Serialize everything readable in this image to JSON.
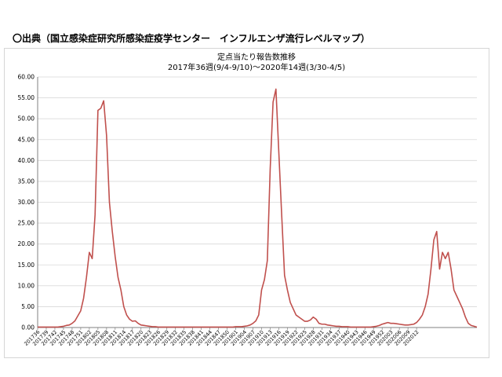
{
  "header": {
    "source_text": "〇出典（国立感染症研究所感染症疫学センター　インフルエンザ流行レベルマップ）"
  },
  "chart_data": {
    "type": "line",
    "title": "定点当たり報告数推移",
    "subtitle": "2017年36週(9/4-9/10)〜2020年14週(3/30-4/5)",
    "xlabel": "",
    "ylabel": "",
    "ylim": [
      0,
      60
    ],
    "yticks": [
      "0.00",
      "5.00",
      "10.00",
      "15.00",
      "20.00",
      "25.00",
      "30.00",
      "35.00",
      "40.00",
      "45.00",
      "50.00",
      "55.00",
      "60.00"
    ],
    "grid": true,
    "legend": "none",
    "line_color": "#c0504d",
    "x_tick_labels": [
      "201736",
      "201739",
      "201742",
      "201745",
      "201748",
      "201751",
      "201802",
      "201805",
      "201808",
      "201811",
      "201814",
      "201817",
      "201820",
      "201823",
      "201826",
      "201829",
      "201832",
      "201835",
      "201838",
      "201841",
      "201844",
      "201847",
      "201850",
      "201901",
      "201904",
      "201907",
      "201910",
      "201913",
      "201916",
      "201919",
      "201922",
      "201925",
      "201928",
      "201931",
      "201934",
      "201937",
      "201940",
      "201943",
      "201946",
      "201949",
      "201952",
      "202003",
      "202006",
      "202009",
      "202012"
    ],
    "series": [
      {
        "values": [
          0.1,
          0.1,
          0.1,
          0.1,
          0.1,
          0.1,
          0.1,
          0.1,
          0.2,
          0.3,
          0.5,
          0.6,
          1.0,
          1.6,
          2.8,
          4.0,
          7.0,
          12.0,
          18.0,
          16.5,
          27.0,
          52.0,
          52.5,
          54.3,
          46.0,
          30.0,
          23.0,
          17.0,
          12.0,
          9.0,
          5.0,
          3.0,
          2.0,
          1.5,
          1.6,
          1.0,
          0.6,
          0.5,
          0.4,
          0.3,
          0.2,
          0.2,
          0.1,
          0.1,
          0.1,
          0.1,
          0.1,
          0.1,
          0.1,
          0.1,
          0.1,
          0.1,
          0.1,
          0.1,
          0.1,
          0.1,
          0.1,
          0.1,
          0.1,
          0.1,
          0.1,
          0.1,
          0.1,
          0.1,
          0.1,
          0.1,
          0.1,
          0.1,
          0.1,
          0.2,
          0.2,
          0.2,
          0.3,
          0.4,
          0.6,
          1.0,
          1.6,
          3.0,
          9.0,
          11.5,
          16.0,
          38.0,
          54.0,
          57.1,
          42.0,
          27.0,
          12.5,
          9.0,
          6.0,
          4.5,
          3.0,
          2.5,
          2.0,
          1.5,
          1.5,
          1.8,
          2.5,
          2.0,
          1.0,
          0.8,
          0.8,
          0.6,
          0.5,
          0.4,
          0.3,
          0.3,
          0.2,
          0.2,
          0.2,
          0.1,
          0.1,
          0.1,
          0.1,
          0.1,
          0.1,
          0.1,
          0.1,
          0.2,
          0.3,
          0.5,
          0.8,
          1.0,
          1.2,
          1.0,
          1.0,
          0.9,
          0.8,
          0.7,
          0.6,
          0.6,
          0.7,
          0.8,
          1.2,
          2.0,
          3.0,
          5.0,
          8.0,
          14.0,
          21.0,
          23.0,
          14.0,
          18.0,
          16.5,
          18.0,
          14.0,
          9.0,
          7.5,
          6.0,
          4.5,
          2.5,
          1.0,
          0.5,
          0.3,
          0.1
        ]
      }
    ]
  }
}
